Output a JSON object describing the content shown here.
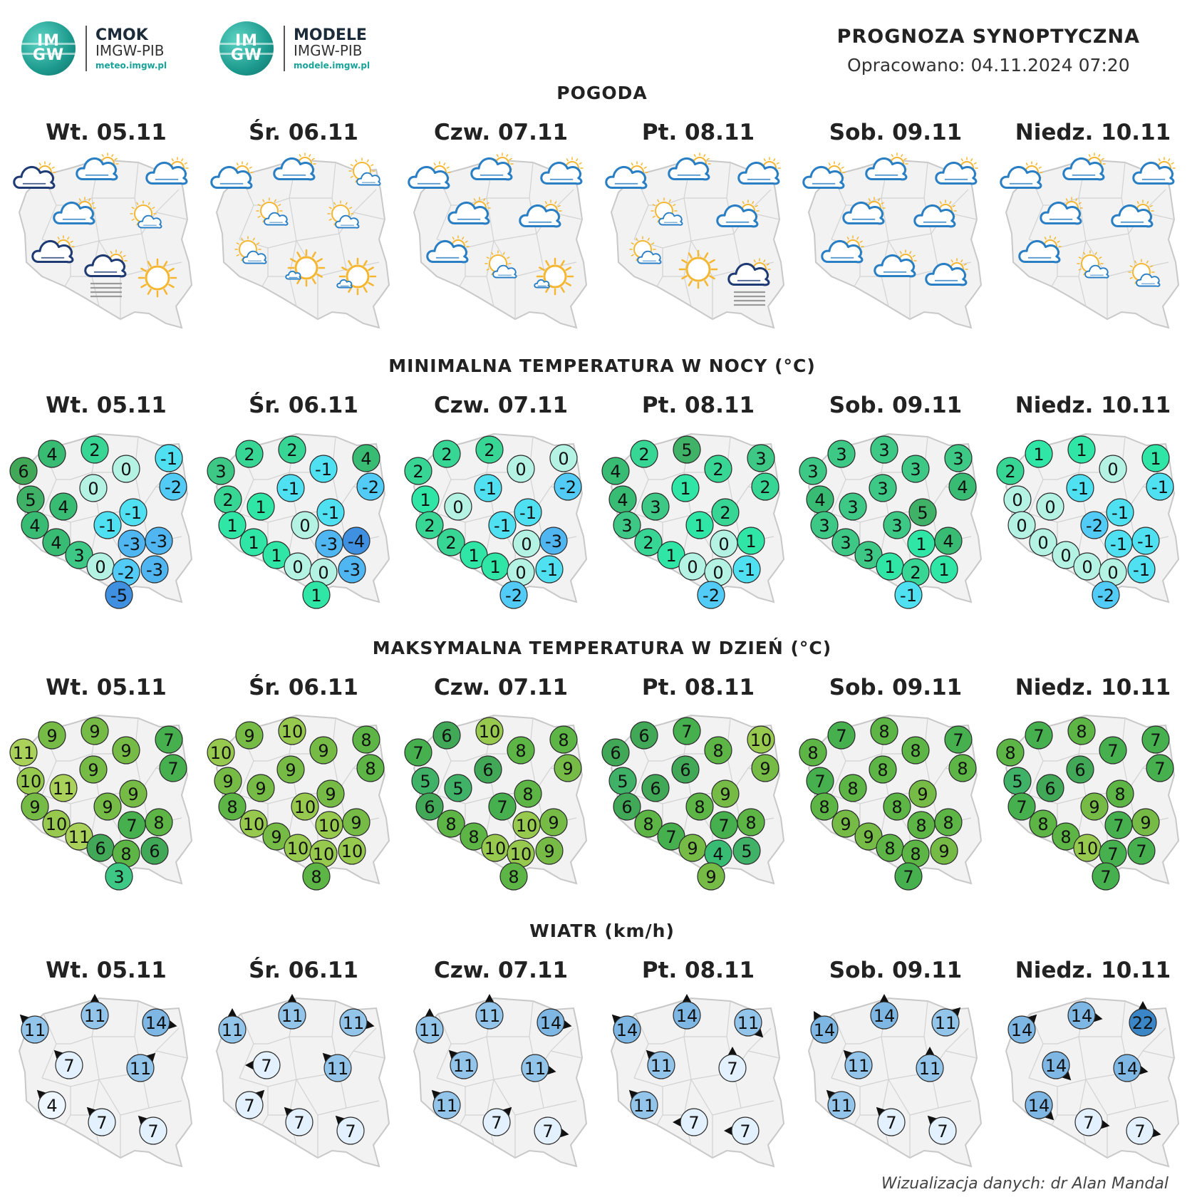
{
  "header": {
    "logo_cmok": {
      "badge": "IM\nGW",
      "name": "CMOK",
      "org": "IMGW-PIB",
      "url": "meteo.imgw.pl"
    },
    "logo_modele": {
      "badge": "IM\nGW",
      "name": "MODELE",
      "org": "IMGW-PIB",
      "url": "modele.imgw.pl"
    },
    "title": "PROGNOZA SYNOPTYCZNA",
    "issued": "Opracowano: 04.11.2024 07:20"
  },
  "days": [
    "Wt. 05.11",
    "Śr. 06.11",
    "Czw. 07.11",
    "Pt. 08.11",
    "Sob. 09.11",
    "Niedz. 10.11"
  ],
  "sections": {
    "weather": "POGODA",
    "tmin": "MINIMALNA TEMPERATURA W NOCY (°C)",
    "tmax": "MAKSYMALNA TEMPERATURA W DZIEŃ (°C)",
    "wind": "WIATR (km/h)"
  },
  "colors": {
    "map_fill": "#f2f2f2",
    "map_stroke": "#c8c8c8",
    "sun": "#f5b731",
    "cloud_light": "#2a7fc4",
    "cloud_dark": "#1f3b73",
    "fog": "#9a9a9a"
  },
  "weather": [
    [
      "cloud-dark-sun",
      "cloud-sun",
      "cloud-sun",
      "cloud-sun",
      "cloud-few-sun",
      "cloud-dark-sun",
      "cloud-dark-fog",
      "sun"
    ],
    [
      "cloud-sun",
      "cloud-sun",
      "cloud-few-sun",
      "cloud-few-sun",
      "cloud-few-sun",
      "cloud-few-sun",
      "sun-cloud-small",
      "sun-cloud-small"
    ],
    [
      "cloud-sun",
      "cloud-sun",
      "cloud-sun",
      "cloud-sun",
      "cloud-sun",
      "cloud-sun",
      "cloud-few-sun",
      "sun-cloud-small"
    ],
    [
      "cloud-sun",
      "cloud-sun",
      "cloud-sun",
      "cloud-few-sun",
      "cloud-sun",
      "cloud-few-sun",
      "sun",
      "cloud-dark-fog"
    ],
    [
      "cloud-sun",
      "cloud-sun",
      "cloud-sun",
      "cloud-sun",
      "cloud-sun",
      "cloud-sun",
      "cloud-sun",
      "cloud-sun"
    ],
    [
      "cloud-sun",
      "cloud-sun",
      "cloud-sun",
      "cloud-sun",
      "cloud-sun",
      "cloud-sun",
      "cloud-few-sun",
      "cloud-few-sun"
    ]
  ],
  "tmin": [
    [
      "6",
      "4",
      "2",
      "0",
      "-1",
      "-2",
      "5",
      "4",
      "0",
      "-1",
      "4",
      "-1",
      "-3",
      "-3",
      "4",
      "3",
      "0",
      "-2",
      "-3",
      "-5"
    ],
    [
      "3",
      "2",
      "2",
      "-1",
      "4",
      "-2",
      "2",
      "1",
      "-1",
      "-1",
      "1",
      "0",
      "-3",
      "-4",
      "1",
      "1",
      "0",
      "0",
      "-3",
      "1"
    ],
    [
      "2",
      "2",
      "2",
      "0",
      "0",
      "-2",
      "1",
      "0",
      "-1",
      "-1",
      "2",
      "-1",
      "0",
      "-3",
      "2",
      "1",
      "1",
      "0",
      "-1",
      "-2"
    ],
    [
      "4",
      "2",
      "5",
      "2",
      "3",
      "2",
      "4",
      "3",
      "1",
      "2",
      "3",
      "1",
      "0",
      "1",
      "2",
      "1",
      "0",
      "0",
      "-1",
      "-2"
    ],
    [
      "3",
      "3",
      "3",
      "3",
      "3",
      "4",
      "4",
      "3",
      "3",
      "5",
      "3",
      "3",
      "1",
      "4",
      "3",
      "3",
      "1",
      "2",
      "1",
      "-1"
    ],
    [
      "2",
      "1",
      "1",
      "0",
      "1",
      "-1",
      "0",
      "0",
      "-1",
      "-1",
      "0",
      "-2",
      "-1",
      "-1",
      "0",
      "0",
      "0",
      "0",
      "-1",
      "-2"
    ]
  ],
  "tmax": [
    [
      "11",
      "9",
      "9",
      "9",
      "7",
      "7",
      "10",
      "11",
      "9",
      "9",
      "9",
      "9",
      "7",
      "8",
      "10",
      "11",
      "6",
      "8",
      "6",
      "3"
    ],
    [
      "10",
      "9",
      "10",
      "9",
      "8",
      "8",
      "9",
      "9",
      "9",
      "9",
      "8",
      "10",
      "10",
      "9",
      "10",
      "9",
      "10",
      "10",
      "10",
      "8"
    ],
    [
      "7",
      "6",
      "10",
      "8",
      "8",
      "9",
      "5",
      "5",
      "6",
      "8",
      "6",
      "7",
      "10",
      "9",
      "8",
      "8",
      "10",
      "10",
      "9",
      "8"
    ],
    [
      "6",
      "6",
      "7",
      "8",
      "10",
      "9",
      "5",
      "6",
      "6",
      "9",
      "6",
      "8",
      "7",
      "8",
      "8",
      "7",
      "9",
      "4",
      "5",
      "9"
    ],
    [
      "8",
      "7",
      "8",
      "8",
      "7",
      "8",
      "7",
      "8",
      "8",
      "9",
      "8",
      "8",
      "8",
      "8",
      "9",
      "9",
      "8",
      "8",
      "9",
      "7"
    ],
    [
      "8",
      "7",
      "8",
      "7",
      "7",
      "7",
      "5",
      "6",
      "6",
      "8",
      "7",
      "9",
      "7",
      "9",
      "8",
      "8",
      "10",
      "7",
      "7",
      "7"
    ]
  ],
  "wind": [
    [
      [
        "11",
        315
      ],
      [
        "11",
        0
      ],
      [
        "14",
        100
      ],
      [
        "7",
        315
      ],
      [
        "11",
        45
      ],
      [
        "4",
        315
      ],
      [
        "7",
        315
      ],
      [
        "7",
        315
      ]
    ],
    [
      [
        "11",
        0
      ],
      [
        "11",
        0
      ],
      [
        "11",
        100
      ],
      [
        "7",
        270
      ],
      [
        "11",
        315
      ],
      [
        "7",
        45
      ],
      [
        "7",
        315
      ],
      [
        "7",
        315
      ]
    ],
    [
      [
        "11",
        0
      ],
      [
        "11",
        0
      ],
      [
        "14",
        100
      ],
      [
        "11",
        315
      ],
      [
        "11",
        100
      ],
      [
        "11",
        315
      ],
      [
        "7",
        45
      ],
      [
        "7",
        100
      ]
    ],
    [
      [
        "14",
        315
      ],
      [
        "14",
        0
      ],
      [
        "11",
        135
      ],
      [
        "11",
        315
      ],
      [
        "7",
        0
      ],
      [
        "11",
        315
      ],
      [
        "7",
        270
      ],
      [
        "7",
        270
      ]
    ],
    [
      [
        "14",
        330
      ],
      [
        "14",
        0
      ],
      [
        "11",
        45
      ],
      [
        "11",
        315
      ],
      [
        "11",
        0
      ],
      [
        "11",
        315
      ],
      [
        "7",
        315
      ],
      [
        "7",
        315
      ]
    ],
    [
      [
        "14",
        45
      ],
      [
        "14",
        100
      ],
      [
        "22",
        0
      ],
      [
        "14",
        135
      ],
      [
        "14",
        100
      ],
      [
        "14",
        135
      ],
      [
        "7",
        100
      ],
      [
        "7",
        100
      ]
    ]
  ]
}
